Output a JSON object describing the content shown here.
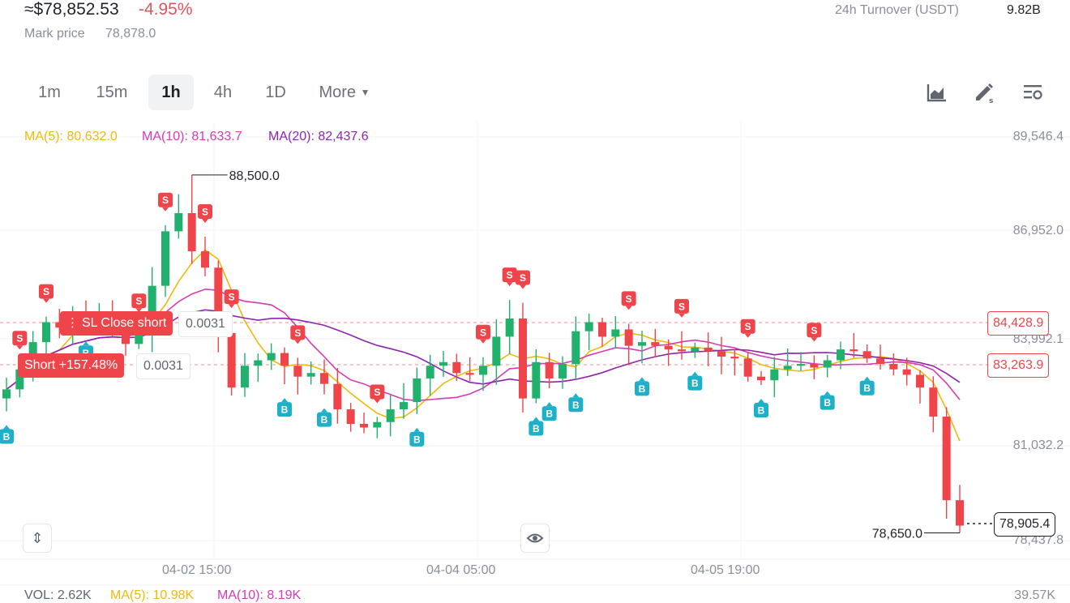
{
  "header": {
    "price": "≈$78,852.53",
    "change": "-4.95%",
    "mark_label": "Mark price",
    "mark_value": "78,878.0",
    "turnover_label": "24h Turnover (USDT)",
    "turnover_value": "9.82B"
  },
  "timeframes": [
    "1m",
    "15m",
    "1h",
    "4h",
    "1D",
    "More"
  ],
  "active_timeframe": "1h",
  "toolbar_icons": [
    "chart-type-icon",
    "drawing-tool-icon",
    "indicator-settings-icon"
  ],
  "ma_legend": {
    "ma5": "MA(5): 80,632.0",
    "ma10": "MA(10): 81,633.7",
    "ma20": "MA(20): 82,437.6"
  },
  "price_axis": [
    "89,546.4",
    "86,952.0",
    "83,992.1",
    "81,032.2",
    "78,437.8"
  ],
  "time_axis": [
    "04-02 15:00",
    "04-04 05:00",
    "04-05 19:00"
  ],
  "annotations": {
    "high": "88,500.0",
    "low": "78,650.0",
    "current_price": "78,905.4"
  },
  "orders": {
    "sl_label": "SL Close short",
    "sl_qty": "0.0031",
    "sl_price": "84,428.9",
    "short_label": "Short +157.48%",
    "short_qty": "0.0031",
    "short_price": "83,263.9"
  },
  "volume": {
    "vol": "VOL: 2.62K",
    "ma5": "MA(5): 10.98K",
    "ma10": "MA(10): 8.19K",
    "axis_top": "39.57K"
  },
  "markers": {
    "buy": "B",
    "sell": "S"
  },
  "colors": {
    "up": "#20b26c",
    "down": "#ef454a",
    "ma5": "#f0b90b",
    "ma10": "#d63ab5",
    "ma20": "#8e24aa",
    "buy_marker": "#1fb0c9",
    "sell_marker": "#ef454a"
  },
  "chart_data": {
    "type": "candlestick",
    "close_path": [
      82600,
      83150,
      83900,
      84450,
      84300,
      84650,
      84450,
      84650,
      84250,
      83850,
      84150,
      85450,
      86950,
      87450,
      86400,
      85950,
      84150,
      82650,
      83250,
      83400,
      83600,
      83250,
      82950,
      83050,
      82750,
      82050,
      81650,
      81550,
      81700,
      82050,
      82250,
      82900,
      83250,
      83350,
      83050,
      83000,
      83250,
      84050,
      84550,
      82350,
      83350,
      82900,
      83300,
      84200,
      84450,
      84050,
      84250,
      83800,
      83900,
      83800,
      83700,
      83650,
      83750,
      83650,
      83500,
      83450,
      82950,
      82850,
      83150,
      83250,
      83300,
      83200,
      83400,
      83700,
      83650,
      83450,
      83300,
      83150,
      83000,
      82650,
      81850,
      79550,
      78850
    ],
    "high": 88500.0,
    "low": 78650.0,
    "last": 78905.4
  }
}
